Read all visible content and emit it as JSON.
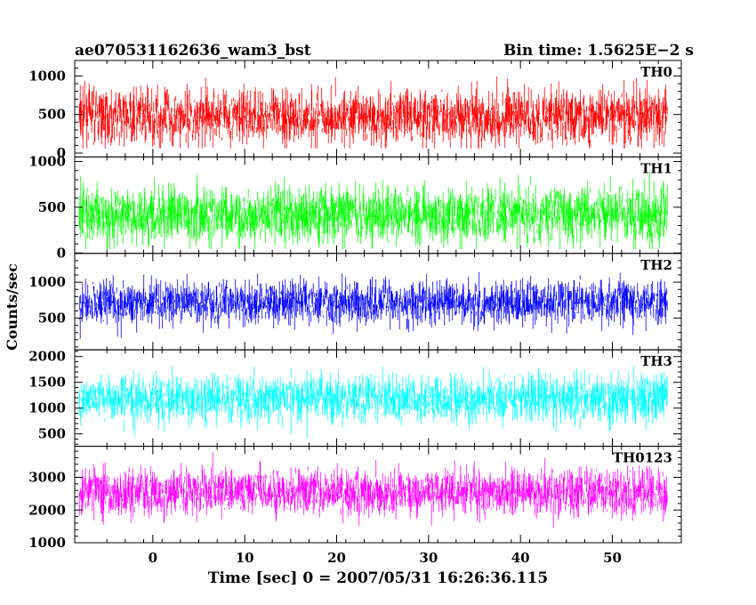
{
  "header": {
    "title": "ae070531162636_wam3_bst",
    "bin_time": "Bin time: 1.5625E−2 s"
  },
  "chart_data": {
    "type": "line",
    "xlabel": "Time [sec] 0 = 2007/05/31 16:26:36.115",
    "ylabel": "Counts/sec",
    "xlim": [
      -8.5,
      57.5
    ],
    "data_xrange": [
      -8,
      56
    ],
    "x_ticks": [
      0,
      10,
      20,
      30,
      40,
      50
    ],
    "panels": [
      {
        "name": "TH0",
        "color": "#ff0000",
        "ylim": [
          -50,
          1200
        ],
        "y_ticks": [
          0,
          500,
          1000
        ],
        "y_base": 470,
        "y_spread": 300,
        "y_min": 60,
        "y_max": 1190
      },
      {
        "name": "TH1",
        "color": "#00ff00",
        "ylim": [
          -5,
          1050
        ],
        "y_ticks": [
          0,
          500,
          1000
        ],
        "y_base": 420,
        "y_spread": 270,
        "y_min": 40,
        "y_max": 1040
      },
      {
        "name": "TH2",
        "color": "#0000ff",
        "ylim": [
          60,
          1400
        ],
        "y_ticks": [
          500,
          1000
        ],
        "y_base": 720,
        "y_spread": 260,
        "y_min": 100,
        "y_max": 1390
      },
      {
        "name": "TH3",
        "color": "#00ffff",
        "ylim": [
          260,
          2130
        ],
        "y_ticks": [
          500,
          1000,
          1500,
          2000
        ],
        "y_base": 1190,
        "y_spread": 380,
        "y_min": 340,
        "y_max": 2120
      },
      {
        "name": "TH0123",
        "color": "#ff00ff",
        "ylim": [
          1000,
          3950
        ],
        "y_ticks": [
          1000,
          2000,
          3000
        ],
        "y_base": 2550,
        "y_spread": 600,
        "y_min": 1100,
        "y_max": 3940
      }
    ]
  }
}
